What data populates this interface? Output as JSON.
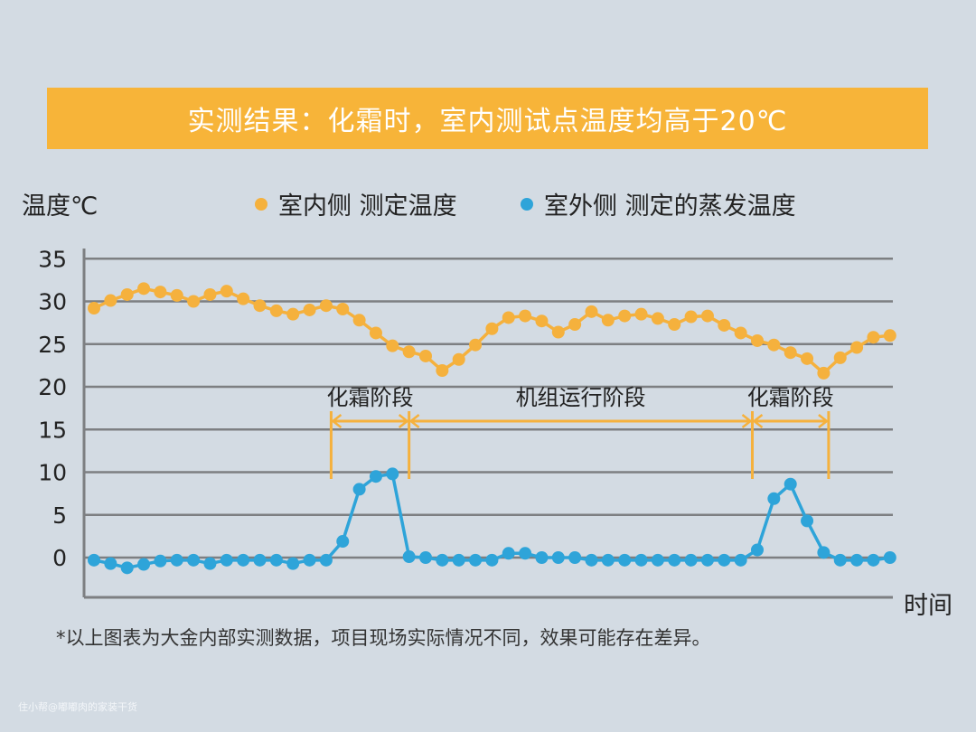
{
  "banner": {
    "title": "实测结果：化霜时，室内测试点温度均高于20℃"
  },
  "chart_data": {
    "type": "line",
    "title": "实测结果：化霜时，室内测试点温度均高于20℃",
    "ylabel": "温度℃",
    "xlabel": "时间",
    "ylim": [
      -5,
      35
    ],
    "yticks": [
      0,
      5,
      10,
      15,
      20,
      25,
      30,
      35
    ],
    "ytick_labels": [
      "0",
      "5",
      "10",
      "15",
      "20",
      "25",
      "30",
      "35"
    ],
    "grid": true,
    "legend_position": "top",
    "series": [
      {
        "name": "室内侧 测定温度",
        "color": "#f5b13d",
        "values": [
          29.2,
          30.1,
          30.8,
          31.5,
          31.1,
          30.7,
          30.0,
          30.8,
          31.2,
          30.3,
          29.5,
          28.9,
          28.5,
          29.0,
          29.5,
          29.1,
          27.8,
          26.3,
          24.8,
          24.1,
          23.6,
          21.9,
          23.2,
          24.9,
          26.8,
          28.1,
          28.3,
          27.7,
          26.4,
          27.3,
          28.8,
          27.8,
          28.3,
          28.5,
          28.0,
          27.3,
          28.2,
          28.3,
          27.2,
          26.3,
          25.4,
          24.9,
          24.0,
          23.3,
          21.6,
          23.4,
          24.6,
          25.8,
          26.0
        ]
      },
      {
        "name": "室外侧 测定的蒸发温度",
        "color": "#2ea4d9",
        "values": [
          -0.3,
          -0.7,
          -1.2,
          -0.8,
          -0.4,
          -0.3,
          -0.3,
          -0.7,
          -0.3,
          -0.3,
          -0.3,
          -0.3,
          -0.7,
          -0.3,
          -0.3,
          1.9,
          8.0,
          9.5,
          9.8,
          0.1,
          0.0,
          -0.3,
          -0.3,
          -0.3,
          -0.3,
          0.5,
          0.5,
          0.0,
          0.0,
          0.0,
          -0.3,
          -0.3,
          -0.3,
          -0.3,
          -0.3,
          -0.3,
          -0.3,
          -0.3,
          -0.3,
          -0.3,
          0.9,
          6.9,
          8.6,
          4.3,
          0.6,
          -0.3,
          -0.3,
          -0.3,
          0.0
        ]
      }
    ],
    "annotations": [
      {
        "label": "化霜阶段",
        "start_index": 14.3,
        "end_index": 19.0
      },
      {
        "label": "机组运行阶段",
        "start_index": 19.0,
        "end_index": 39.7
      },
      {
        "label": "化霜阶段",
        "start_index": 39.7,
        "end_index": 44.3
      }
    ]
  },
  "colors": {
    "banner": "#f7b439",
    "annotation": "#f5b13d",
    "grid": "#7d7f82"
  },
  "footnote": "*以上图表为大金内部实测数据，项目现场实际情况不同，效果可能存在差异。",
  "watermark": "住小帮@嘟嘟肉的家装干货"
}
